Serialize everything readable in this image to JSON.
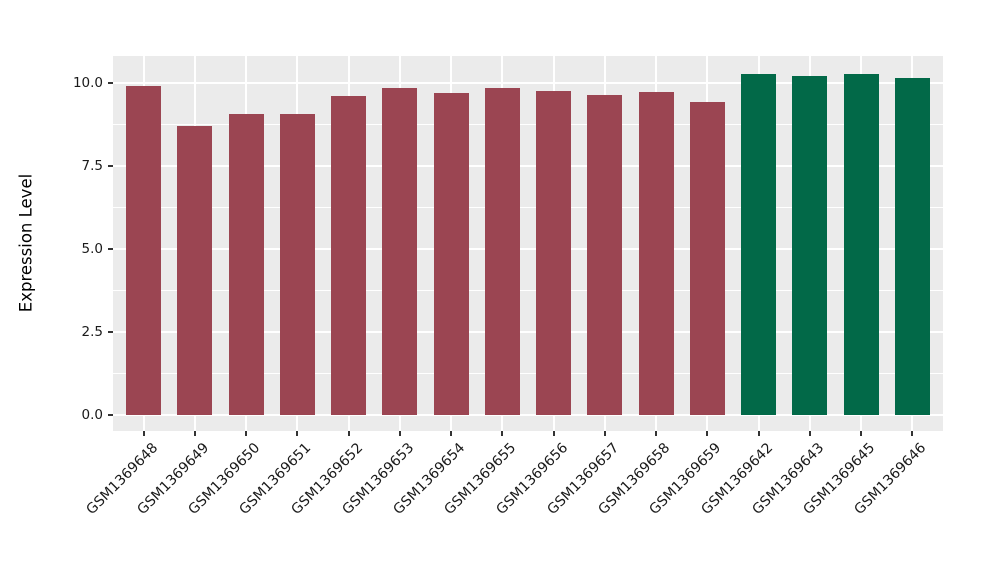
{
  "chart_data": {
    "type": "bar",
    "title": "",
    "xlabel": "",
    "ylabel": "Expression Level",
    "categories": [
      "GSM1369648",
      "GSM1369649",
      "GSM1369650",
      "GSM1369651",
      "GSM1369652",
      "GSM1369653",
      "GSM1369654",
      "GSM1369655",
      "GSM1369656",
      "GSM1369657",
      "GSM1369658",
      "GSM1369659",
      "GSM1369642",
      "GSM1369643",
      "GSM1369645",
      "GSM1369646"
    ],
    "values": [
      9.9,
      8.7,
      9.05,
      9.05,
      9.6,
      9.85,
      9.68,
      9.83,
      9.75,
      9.64,
      9.73,
      9.42,
      10.26,
      10.2,
      10.26,
      10.14
    ],
    "bar_groups": [
      "maroon",
      "maroon",
      "maroon",
      "maroon",
      "maroon",
      "maroon",
      "maroon",
      "maroon",
      "maroon",
      "maroon",
      "maroon",
      "maroon",
      "green",
      "green",
      "green",
      "green"
    ],
    "palette": {
      "maroon": "#9b4552",
      "green": "#026948"
    },
    "ytick_labels": [
      "0.0",
      "2.5",
      "5.0",
      "7.5",
      "10.0"
    ],
    "ytick_values": [
      0,
      2.5,
      5,
      7.5,
      10
    ],
    "yminor_values": [
      1.25,
      3.75,
      6.25,
      8.75
    ],
    "ylim": [
      -0.47,
      10.8
    ],
    "legend_position": "none",
    "grid": "major+minor",
    "panel_bg": "#ebebeb",
    "grid_color": "#ffffff",
    "tick_color": "#333333",
    "tick_label_color": "#1a1a1a",
    "axis_title_color": "#000000",
    "xtick_angle_deg": 45
  }
}
